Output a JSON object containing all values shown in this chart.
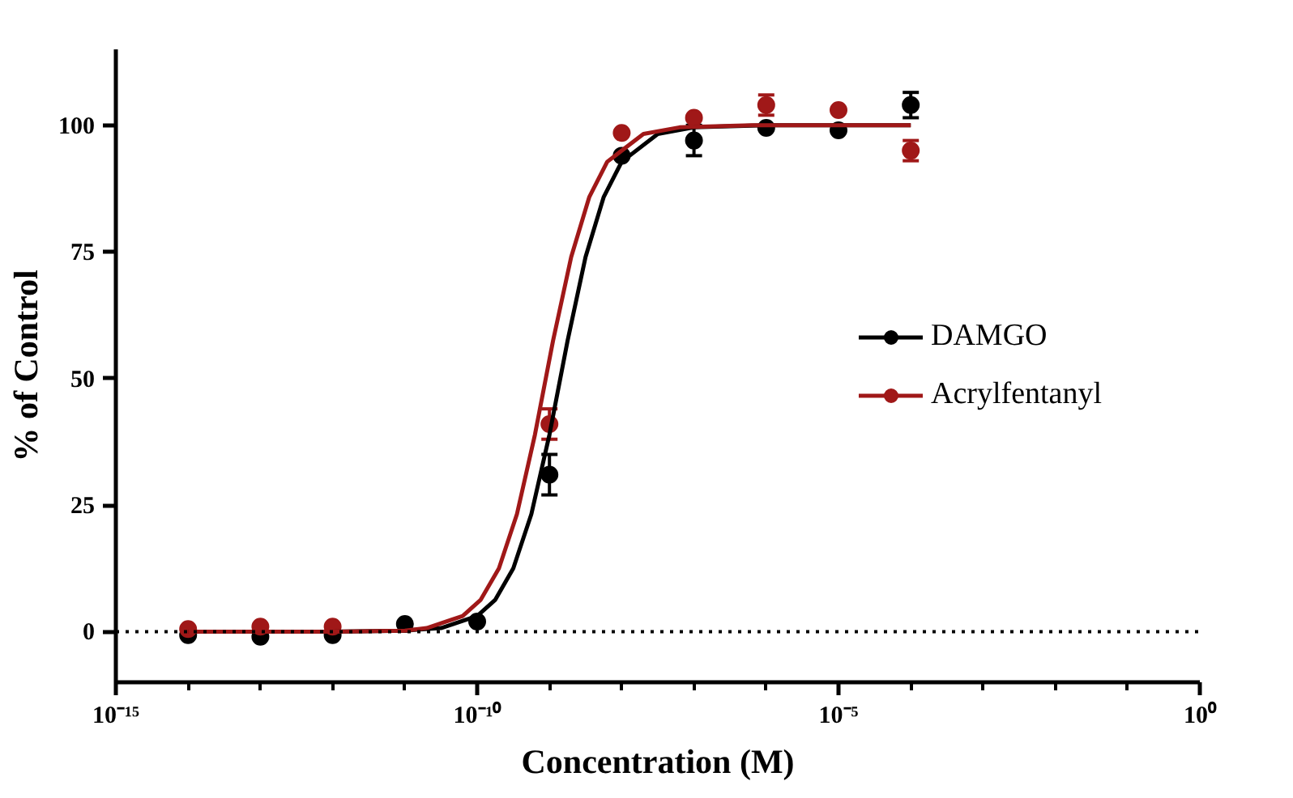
{
  "chart_data": {
    "type": "scatter",
    "xlabel": "Concentration (M)",
    "ylabel": "% of Control",
    "x": [
      1e-14,
      1e-13,
      1e-12,
      1e-11,
      1e-10,
      1e-09,
      1e-08,
      1e-07,
      1e-06,
      1e-05,
      0.0001
    ],
    "series": [
      {
        "name": "DAMGO",
        "color": "#000000",
        "values": [
          -0.7,
          -1,
          -0.7,
          1.5,
          2,
          31,
          94,
          97,
          99.5,
          99,
          104
        ],
        "errors": [
          null,
          null,
          null,
          null,
          null,
          4,
          null,
          3,
          null,
          null,
          2.5
        ]
      },
      {
        "name": "Acrylfentanyl",
        "color": "#a01818",
        "values": [
          0.5,
          1,
          1,
          null,
          null,
          41,
          98.5,
          101.5,
          104,
          103,
          95
        ],
        "errors": [
          null,
          null,
          null,
          null,
          null,
          3,
          null,
          null,
          2,
          null,
          2
        ]
      },
      {
        "type": "line",
        "marker": "none",
        "color": "#000000",
        "x": [
          1e-14,
          1e-12,
          1e-11,
          3.16e-11,
          1e-10,
          1.78e-10,
          3.16e-10,
          5.62e-10,
          1e-09,
          1.78e-09,
          3.16e-09,
          5.62e-09,
          1e-08,
          3.16e-08,
          1e-07,
          1e-06,
          0.0001
        ],
        "values": [
          0,
          0,
          0.2,
          0.7,
          3.1,
          6.3,
          12.5,
          23.2,
          38.9,
          57.4,
          74,
          85.8,
          92.8,
          98.3,
          99.6,
          100,
          100
        ]
      },
      {
        "type": "line",
        "marker": "none",
        "color": "#a01818",
        "x": [
          1e-14,
          1e-12,
          1e-11,
          2e-11,
          6.3e-11,
          1.12e-10,
          2e-10,
          3.55e-10,
          6.3e-10,
          1.12e-09,
          2e-09,
          3.55e-09,
          6.3e-09,
          2e-08,
          6.3e-08,
          6.3e-07,
          0.0001
        ],
        "values": [
          0,
          0,
          0.2,
          0.7,
          3.1,
          6.3,
          12.5,
          23.2,
          38.9,
          57.4,
          74,
          85.8,
          92.8,
          98.3,
          99.6,
          100,
          100
        ]
      }
    ],
    "log": "x",
    "xlim": [
      1e-15,
      1
    ],
    "ylim": [
      -10,
      115
    ],
    "xticks": [
      {
        "value": 1e-15,
        "label": "10⁻¹⁵"
      },
      {
        "value": 1e-10,
        "label": "10⁻¹⁰"
      },
      {
        "value": 1e-05,
        "label": "10⁻⁵"
      },
      {
        "value": 1,
        "label": "10⁰"
      }
    ],
    "yticks": [
      0,
      25,
      50,
      75,
      100
    ],
    "ref_lines": [
      {
        "axis": "y",
        "value": 0,
        "line_style": "dotted",
        "color": "#000000"
      }
    ],
    "grid": false,
    "legend": "right",
    "marker": "circle",
    "line_style": "solid"
  }
}
